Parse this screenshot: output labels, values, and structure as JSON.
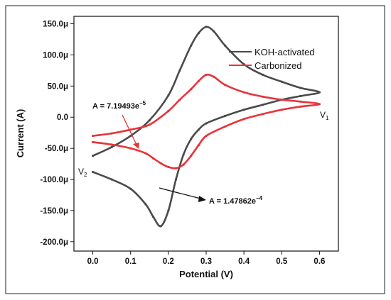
{
  "chart_data": {
    "type": "line",
    "title": "",
    "xlabel": "Potential (V)",
    "ylabel": "Current (A)",
    "xlim": [
      -0.05,
      0.65
    ],
    "ylim": [
      -215,
      162
    ],
    "x_ticks": [
      {
        "value": 0.0,
        "label": "0.0"
      },
      {
        "value": 0.1,
        "label": "0.1"
      },
      {
        "value": 0.2,
        "label": "0.2"
      },
      {
        "value": 0.3,
        "label": "0.3"
      },
      {
        "value": 0.4,
        "label": "0.4"
      },
      {
        "value": 0.5,
        "label": "0.5"
      },
      {
        "value": 0.6,
        "label": "0.6"
      }
    ],
    "y_ticks": [
      {
        "value": 150,
        "label": "150.0μ"
      },
      {
        "value": 100,
        "label": "100.0μ"
      },
      {
        "value": 50,
        "label": "50.0μ"
      },
      {
        "value": 0,
        "label": "0.0"
      },
      {
        "value": -50,
        "label": "-50.0μ"
      },
      {
        "value": -100,
        "label": "-100.0μ"
      },
      {
        "value": -150,
        "label": "-150.0μ"
      },
      {
        "value": -200,
        "label": "-200.0μ"
      }
    ],
    "legend_position": "top-right",
    "series": [
      {
        "name": "KOH-activated",
        "color": "#4a4a4a",
        "x": [
          0.0,
          0.05,
          0.1,
          0.15,
          0.2,
          0.23,
          0.26,
          0.28,
          0.3,
          0.32,
          0.35,
          0.4,
          0.45,
          0.5,
          0.55,
          0.6,
          0.55,
          0.5,
          0.45,
          0.4,
          0.35,
          0.3,
          0.28,
          0.26,
          0.24,
          0.22,
          0.2,
          0.18,
          0.16,
          0.14,
          0.1,
          0.05,
          0.0
        ],
        "y": [
          -62,
          -48,
          -30,
          -5,
          35,
          75,
          115,
          135,
          145,
          138,
          115,
          85,
          68,
          57,
          47,
          40,
          34,
          28,
          20,
          12,
          2,
          -10,
          -20,
          -35,
          -60,
          -100,
          -150,
          -175,
          -160,
          -140,
          -115,
          -100,
          -88
        ]
      },
      {
        "name": "Carbonized",
        "color": "#e8333a",
        "x": [
          0.0,
          0.05,
          0.1,
          0.15,
          0.2,
          0.23,
          0.26,
          0.28,
          0.3,
          0.32,
          0.35,
          0.4,
          0.45,
          0.5,
          0.55,
          0.6,
          0.55,
          0.5,
          0.45,
          0.4,
          0.35,
          0.3,
          0.28,
          0.26,
          0.24,
          0.22,
          0.2,
          0.18,
          0.16,
          0.14,
          0.1,
          0.05,
          0.0
        ],
        "y": [
          -30,
          -26,
          -20,
          -12,
          10,
          28,
          45,
          58,
          68,
          65,
          52,
          40,
          33,
          28,
          25,
          21,
          17,
          12,
          5,
          -3,
          -15,
          -30,
          -45,
          -62,
          -76,
          -82,
          -80,
          -74,
          -66,
          -58,
          -50,
          -44,
          -40
        ]
      }
    ],
    "annotations": [
      {
        "label": "A = 7.19493e",
        "superscript": "−5"
      },
      {
        "label": "A = 1.47862e",
        "superscript": "−4"
      },
      {
        "label": "V",
        "subscript": "1"
      },
      {
        "label": "V",
        "subscript": "2"
      }
    ]
  }
}
